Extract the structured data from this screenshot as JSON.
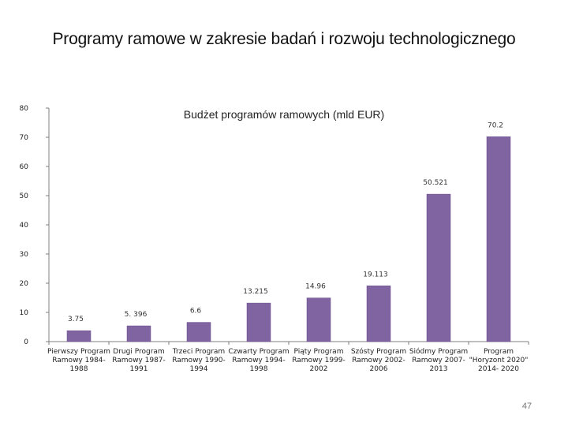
{
  "slide": {
    "title": "Programy ramowe w zakresie badań i rozwoju technologicznego",
    "page_number": "47"
  },
  "colors": {
    "bar": "#8064a2",
    "bar_edge": "#6a4f8c",
    "axis": "#7f7f7f"
  },
  "chart_data": {
    "type": "bar",
    "title": "Budżet programów ramowych (mld EUR)",
    "categories": [
      [
        "Pierwszy Program",
        "Ramowy 1984-",
        "1988"
      ],
      [
        "Drugi Program",
        "Ramowy 1987-",
        "1991"
      ],
      [
        "Trzeci Program",
        "Ramowy 1990-",
        "1994"
      ],
      [
        "Czwarty Program",
        "Ramowy 1994-",
        "1998"
      ],
      [
        "Piąty Program",
        "Ramowy 1999-",
        "2002"
      ],
      [
        "Szósty Program",
        "Ramowy 2002-",
        "2006"
      ],
      [
        "Siódmy Program",
        "Ramowy 2007-",
        "2013"
      ],
      [
        "Program",
        "\"Horyzont 2020\"",
        "2014- 2020"
      ]
    ],
    "values": [
      3.75,
      5.396,
      6.6,
      13.215,
      14.96,
      19.113,
      50.521,
      70.2
    ],
    "value_labels": [
      "3.75",
      "5. 396",
      "6.6",
      "13.215",
      "14.96",
      "19.113",
      "50.521",
      "70.2"
    ],
    "yticks": [
      "0",
      "10",
      "20",
      "30",
      "40",
      "50",
      "60",
      "70",
      "80"
    ],
    "ylim": [
      0,
      80
    ],
    "grid": false,
    "legend": "none"
  }
}
